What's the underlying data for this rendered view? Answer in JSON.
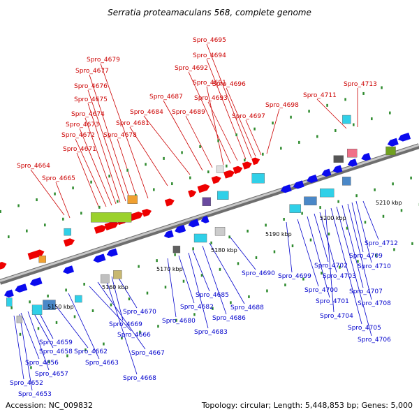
{
  "title": "Serratia proteamaculans 568, complete genome",
  "footer": {
    "accession": "Accession: NC_009832",
    "summary": "Topology: circular; Length: 5,448,853 bp; Genes: 5,000"
  },
  "colors": {
    "forward": "#ee0000",
    "reverse": "#0a0aee",
    "backbone": "#9a9a9a",
    "label_forward": "#cc0000",
    "label_reverse": "#0000cc",
    "tick_major": "#2e8b2e",
    "tick_minor": "#2e8b2e"
  },
  "scale_labels": [
    "5150 kbp",
    "5160 kbp",
    "5170 kbp",
    "5180 kbp",
    "5190 kbp",
    "5200 kbp",
    "5210 kbp"
  ],
  "forward_labels": [
    "Spro_4664",
    "Spro_4665",
    "Spro_4671",
    "Spro_4672",
    "Spro_4673",
    "Spro_4674",
    "Spro_4675",
    "Spro_4676",
    "Spro_4677",
    "Spro_4678",
    "Spro_4679",
    "Spro_4681",
    "Spro_4684",
    "Spro_4687",
    "Spro_4689",
    "Spro_4691",
    "Spro_4692",
    "Spro_4693",
    "Spro_4694",
    "Spro_4695",
    "Spro_4696",
    "Spro_4697",
    "Spro_4698",
    "Spro_4711",
    "Spro_4713"
  ],
  "reverse_labels": [
    "Spro_4652",
    "Spro_4653",
    "Spro_4656",
    "Spro_4657",
    "Spro_4658",
    "Spro_4659",
    "Spro_4662",
    "Spro_4663",
    "Spro_4666",
    "Spro_4667",
    "Spro_4668",
    "Spro_4669",
    "Spro_4670",
    "Spro_4680",
    "Spro_4682",
    "Spro_4683",
    "Spro_4685",
    "Spro_4686",
    "Spro_4688",
    "Spro_4690",
    "Spro_4699",
    "Spro_4700",
    "Spro_4701",
    "Spro_4702",
    "Spro_4703",
    "Spro_4704",
    "Spro_4705",
    "Spro_4706",
    "Spro_4707",
    "Spro_4708",
    "Spro_4709",
    "Spro_4710",
    "Spro_4712"
  ]
}
